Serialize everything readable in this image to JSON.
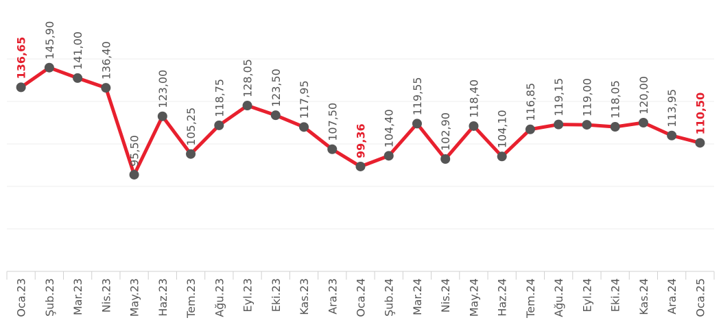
{
  "chart_data": {
    "type": "line",
    "categories": [
      "Oca.23",
      "Şub.23",
      "Mar.23",
      "Nis.23",
      "May.23",
      "Haz.23",
      "Tem.23",
      "Ağu.23",
      "Eyl.23",
      "Eki.23",
      "Kas.23",
      "Ara.23",
      "Oca.24",
      "Şub.24",
      "Mar.24",
      "Nis.24",
      "May.24",
      "Haz.24",
      "Tem.24",
      "Ağu.24",
      "Eyl.24",
      "Eki.24",
      "Kas.24",
      "Ara.24",
      "Oca.25"
    ],
    "series": [
      {
        "color": "#e8202e",
        "marker_color": "#555555",
        "values": [
          136.65,
          145.9,
          141.0,
          136.4,
          95.5,
          123.0,
          105.25,
          118.75,
          128.05,
          123.5,
          117.95,
          107.5,
          99.36,
          104.4,
          119.55,
          102.9,
          118.4,
          104.1,
          116.85,
          119.15,
          119.0,
          118.05,
          120.0,
          113.95,
          110.5
        ],
        "value_labels": [
          "136,65",
          "145,90",
          "141,00",
          "136,40",
          "95,50",
          "123,00",
          "105,25",
          "118,75",
          "128,05",
          "123,50",
          "117,95",
          "107,50",
          "99,36",
          "104,40",
          "119,55",
          "102,90",
          "118,40",
          "104,10",
          "116,85",
          "119,15",
          "119,00",
          "118,05",
          "120,00",
          "113,95",
          "110,50"
        ]
      }
    ],
    "highlight": [
      0,
      12,
      24
    ],
    "highlight_color": "#e41f2d",
    "ylim": [
      50,
      150
    ],
    "yticks": [
      50,
      70,
      90,
      110,
      130,
      150
    ],
    "grid": true
  }
}
